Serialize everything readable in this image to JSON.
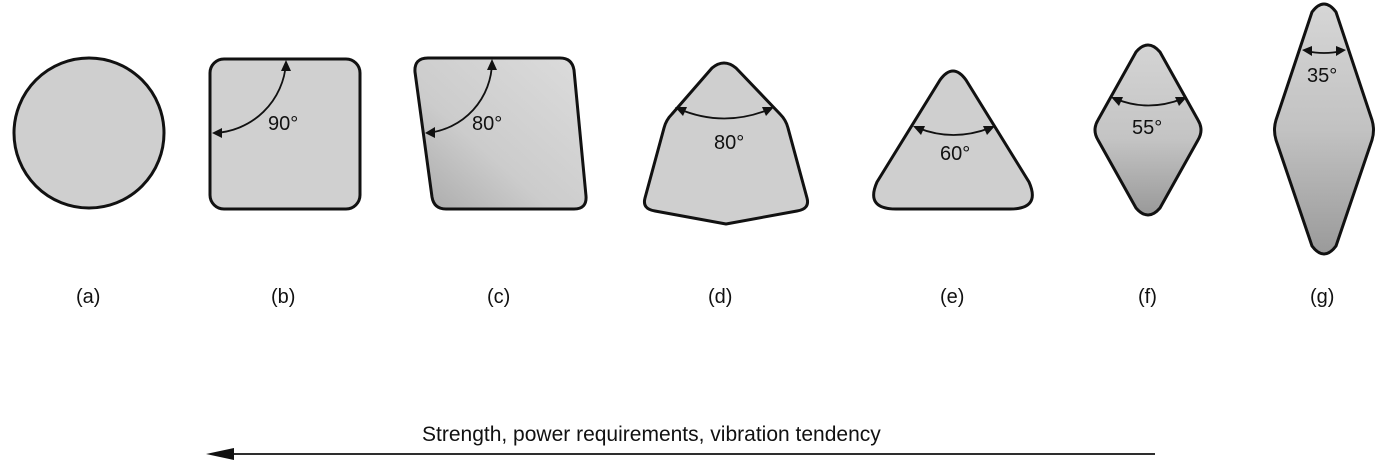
{
  "inserts": [
    {
      "id": "a",
      "caption": "(a)",
      "angle": "",
      "shape": "round"
    },
    {
      "id": "b",
      "caption": "(b)",
      "angle": "90°",
      "shape": "square"
    },
    {
      "id": "c",
      "caption": "(c)",
      "angle": "80°",
      "shape": "rhombic-80"
    },
    {
      "id": "d",
      "caption": "(d)",
      "angle": "80°",
      "shape": "trigon"
    },
    {
      "id": "e",
      "caption": "(e)",
      "angle": "60°",
      "shape": "triangle"
    },
    {
      "id": "f",
      "caption": "(f)",
      "angle": "55°",
      "shape": "diamond-55"
    },
    {
      "id": "g",
      "caption": "(g)",
      "angle": "35°",
      "shape": "diamond-35"
    }
  ],
  "arrow": {
    "label": "Strength, power requirements, vibration tendency",
    "direction": "left"
  },
  "colors": {
    "fill_light": "#d8d8d8",
    "fill_dark": "#a8a8a8",
    "outline": "#111111"
  }
}
